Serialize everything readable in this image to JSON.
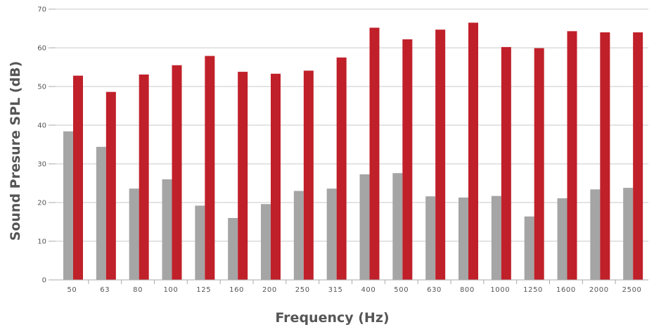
{
  "chart_data": {
    "type": "bar",
    "title": "",
    "xlabel": "Frequency (Hz)",
    "ylabel": "Sound Presure SPL (dB)",
    "ylim": [
      0,
      70
    ],
    "yticks": [
      "0",
      "10",
      "20",
      "30",
      "40",
      "50",
      "60",
      "70"
    ],
    "grid": true,
    "legend": "none",
    "categories": [
      "50",
      "63",
      "80",
      "100",
      "125",
      "160",
      "200",
      "250",
      "315",
      "400",
      "500",
      "630",
      "800",
      "1000",
      "1250",
      "1600",
      "2000",
      "2500"
    ],
    "series": [
      {
        "color": "#a5a5a5",
        "values": [
          38.4,
          34.4,
          23.6,
          26.0,
          19.2,
          16.0,
          19.6,
          23.0,
          23.6,
          27.3,
          27.6,
          21.6,
          21.3,
          21.7,
          16.4,
          21.1,
          23.4,
          23.8
        ]
      },
      {
        "color": "#c0202a",
        "values": [
          52.8,
          48.6,
          53.1,
          55.5,
          57.9,
          53.8,
          53.3,
          54.1,
          57.5,
          65.2,
          62.2,
          64.7,
          66.5,
          60.2,
          59.9,
          64.3,
          64.0,
          64.0
        ]
      }
    ]
  }
}
